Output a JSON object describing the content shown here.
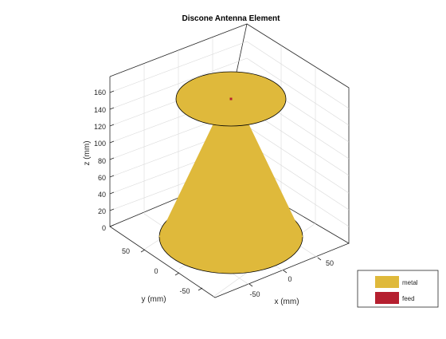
{
  "title": "Discone Antenna Element",
  "axes": {
    "x": {
      "label": "x (mm)",
      "ticks": [
        "-50",
        "0",
        "50"
      ]
    },
    "y": {
      "label": "y (mm)",
      "ticks": [
        "50",
        "0",
        "-50"
      ]
    },
    "z": {
      "label": "z (mm)",
      "ticks": [
        "0",
        "20",
        "40",
        "60",
        "80",
        "100",
        "120",
        "140",
        "160"
      ]
    }
  },
  "legend": {
    "items": [
      {
        "label": "metal",
        "color": "#dfb93b"
      },
      {
        "label": "feed",
        "color": "#b51f2f"
      }
    ]
  },
  "colors": {
    "metal": "#dfb93b",
    "feed": "#b51f2f",
    "grid": "#d9d9d9",
    "axis": "#262626"
  }
}
